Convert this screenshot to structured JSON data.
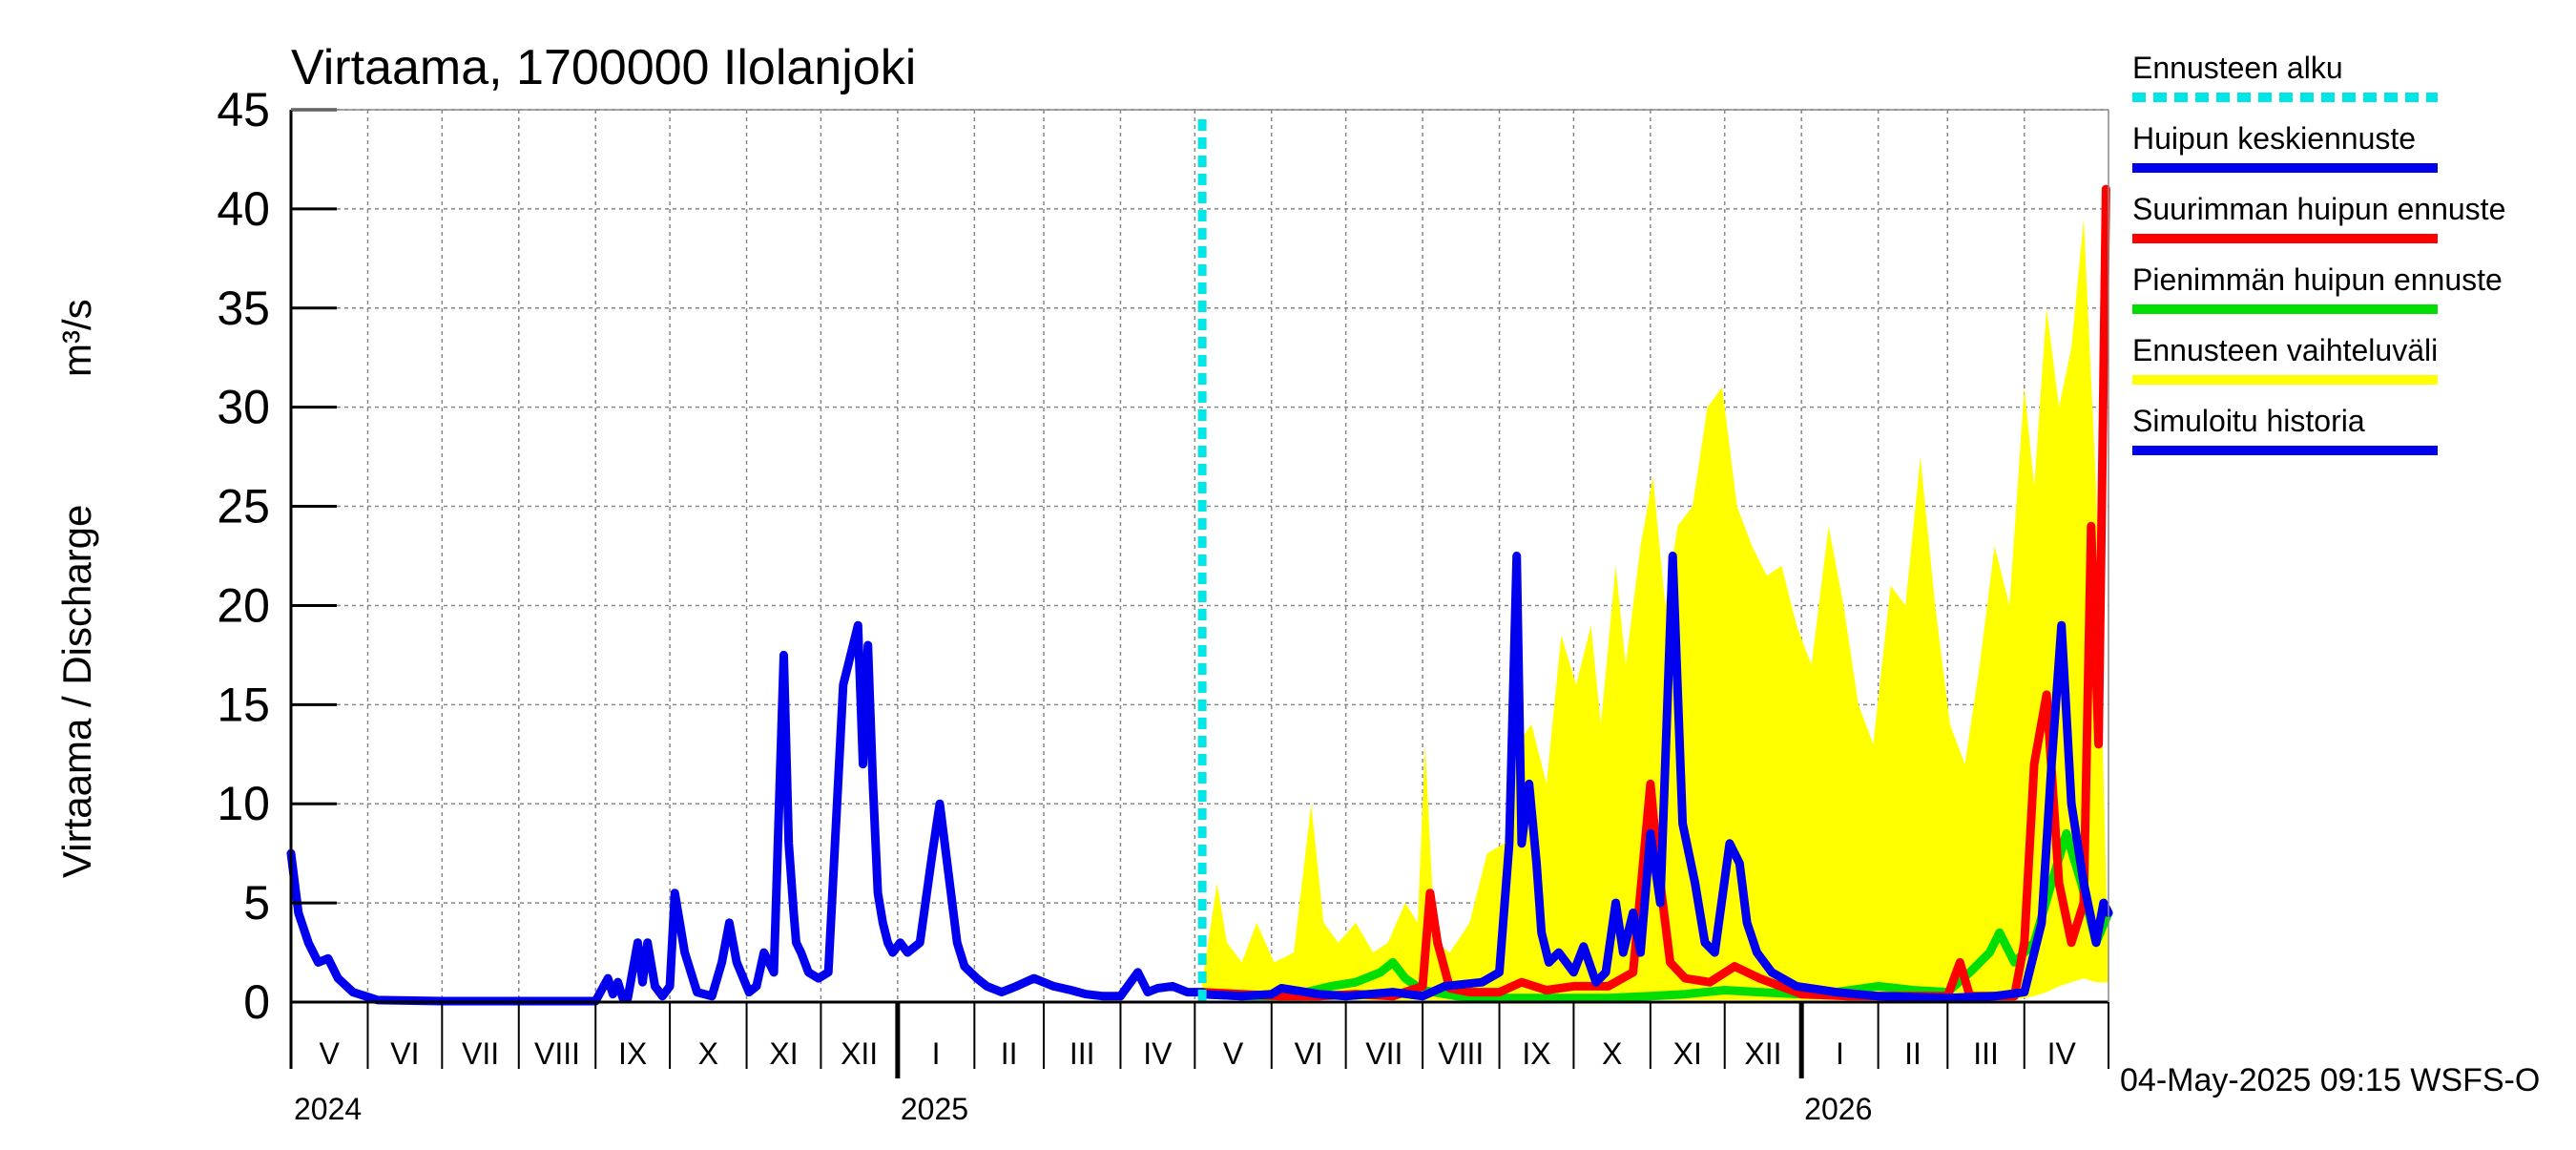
{
  "chart_data": {
    "type": "line",
    "title": "Virtaama, 1700000 Ilolanjoki",
    "ylabel": "Virtaama / Discharge",
    "yunit": "m³/s",
    "ylim": [
      0,
      45
    ],
    "yticks": [
      0,
      5,
      10,
      15,
      20,
      25,
      30,
      35,
      40,
      45
    ],
    "ytick_labels": [
      "0",
      "5",
      "10",
      "15",
      "20",
      "25",
      "30",
      "35",
      "40",
      "45"
    ],
    "xlim": [
      "2024-05-01",
      "2026-05-05"
    ],
    "grid": true,
    "legend_position": "right",
    "forecast_start": "2025-05-04",
    "month_labels": [
      {
        "label": "V",
        "start": "2024-05-01",
        "end": "2024-06-01"
      },
      {
        "label": "VI",
        "start": "2024-06-01",
        "end": "2024-07-01"
      },
      {
        "label": "VII",
        "start": "2024-07-01",
        "end": "2024-08-01"
      },
      {
        "label": "VIII",
        "start": "2024-08-01",
        "end": "2024-09-01"
      },
      {
        "label": "IX",
        "start": "2024-09-01",
        "end": "2024-10-01"
      },
      {
        "label": "X",
        "start": "2024-10-01",
        "end": "2024-11-01"
      },
      {
        "label": "XI",
        "start": "2024-11-01",
        "end": "2024-12-01"
      },
      {
        "label": "XII",
        "start": "2024-12-01",
        "end": "2025-01-01"
      },
      {
        "label": "I",
        "start": "2025-01-01",
        "end": "2025-02-01"
      },
      {
        "label": "II",
        "start": "2025-02-01",
        "end": "2025-03-01"
      },
      {
        "label": "III",
        "start": "2025-03-01",
        "end": "2025-04-01"
      },
      {
        "label": "IV",
        "start": "2025-04-01",
        "end": "2025-05-01"
      },
      {
        "label": "V",
        "start": "2025-05-01",
        "end": "2025-06-01"
      },
      {
        "label": "VI",
        "start": "2025-06-01",
        "end": "2025-07-01"
      },
      {
        "label": "VII",
        "start": "2025-07-01",
        "end": "2025-08-01"
      },
      {
        "label": "VIII",
        "start": "2025-08-01",
        "end": "2025-09-01"
      },
      {
        "label": "IX",
        "start": "2025-09-01",
        "end": "2025-10-01"
      },
      {
        "label": "X",
        "start": "2025-10-01",
        "end": "2025-11-01"
      },
      {
        "label": "XI",
        "start": "2025-11-01",
        "end": "2025-12-01"
      },
      {
        "label": "XII",
        "start": "2025-12-01",
        "end": "2026-01-01"
      },
      {
        "label": "I",
        "start": "2026-01-01",
        "end": "2026-02-01"
      },
      {
        "label": "II",
        "start": "2026-02-01",
        "end": "2026-03-01"
      },
      {
        "label": "III",
        "start": "2026-03-01",
        "end": "2026-04-01"
      },
      {
        "label": "IV",
        "start": "2026-04-01",
        "end": "2026-05-01"
      }
    ],
    "year_labels": [
      {
        "label": "2024",
        "date": "2024-05-01"
      },
      {
        "label": "2025",
        "date": "2025-01-01"
      },
      {
        "label": "2026",
        "date": "2026-01-01"
      }
    ],
    "legend": [
      {
        "label": "Ennusteen alku",
        "color": "#00e5e5",
        "style": "dashed"
      },
      {
        "label": "Huipun keskiennuste",
        "color": "#0000ee",
        "style": "solid"
      },
      {
        "label": "Suurimman huipun ennuste",
        "color": "#ff0000",
        "style": "solid"
      },
      {
        "label": "Pienimmän huipun ennuste",
        "color": "#00dd00",
        "style": "solid"
      },
      {
        "label": "Ennusteen vaihteluväli",
        "color": "#ffff00",
        "style": "solid"
      },
      {
        "label": "Simuloitu historia",
        "color": "#0000ee",
        "style": "solid"
      }
    ],
    "series": [
      {
        "name": "Ennusteen vaihteluväli",
        "kind": "band",
        "color": "#ffff00",
        "x": [
          "2025-05-04",
          "2025-05-10",
          "2025-05-14",
          "2025-05-20",
          "2025-05-26",
          "2025-06-02",
          "2025-06-10",
          "2025-06-17",
          "2025-06-22",
          "2025-06-28",
          "2025-07-05",
          "2025-07-12",
          "2025-07-18",
          "2025-07-25",
          "2025-07-30",
          "2025-08-02",
          "2025-08-06",
          "2025-08-12",
          "2025-08-20",
          "2025-08-27",
          "2025-09-03",
          "2025-09-08",
          "2025-09-14",
          "2025-09-20",
          "2025-09-26",
          "2025-10-02",
          "2025-10-08",
          "2025-10-12",
          "2025-10-18",
          "2025-10-22",
          "2025-10-28",
          "2025-11-02",
          "2025-11-07",
          "2025-11-12",
          "2025-11-18",
          "2025-11-24",
          "2025-11-30",
          "2025-12-06",
          "2025-12-12",
          "2025-12-18",
          "2025-12-24",
          "2025-12-30",
          "2026-01-05",
          "2026-01-12",
          "2026-01-18",
          "2026-01-24",
          "2026-01-30",
          "2026-02-06",
          "2026-02-12",
          "2026-02-18",
          "2026-02-24",
          "2026-03-02",
          "2026-03-08",
          "2026-03-14",
          "2026-03-20",
          "2026-03-26",
          "2026-04-01",
          "2026-04-05",
          "2026-04-10",
          "2026-04-15",
          "2026-04-20",
          "2026-04-25",
          "2026-04-30",
          "2026-05-05"
        ],
        "upper": [
          1.0,
          6.0,
          3.0,
          2.0,
          4.0,
          2.0,
          2.5,
          10.0,
          4.0,
          3.0,
          4.0,
          2.5,
          3.0,
          5.0,
          4.0,
          13.0,
          3.0,
          2.5,
          4.0,
          7.5,
          8.0,
          13.0,
          14.0,
          11.0,
          18.5,
          16.0,
          19.0,
          14.0,
          22.0,
          17.0,
          23.0,
          26.5,
          20.0,
          24.0,
          25.0,
          30.0,
          31.0,
          25.0,
          23.0,
          21.5,
          22.0,
          19.0,
          17.0,
          24.0,
          20.0,
          15.0,
          13.0,
          21.0,
          20.0,
          27.5,
          20.0,
          14.0,
          12.0,
          17.0,
          23.0,
          20.0,
          31.0,
          26.0,
          35.0,
          30.0,
          33.0,
          39.5,
          26.0,
          1.5
        ],
        "lower": [
          0.2,
          0.2,
          0.2,
          0.2,
          0.1,
          0.1,
          0.1,
          0.1,
          0.1,
          0.1,
          0.1,
          0.1,
          0.1,
          0.1,
          0.1,
          0.1,
          0.1,
          0.1,
          0.1,
          0.1,
          0.1,
          0.1,
          0.1,
          0.1,
          0.1,
          0.1,
          0.1,
          0.1,
          0.1,
          0.1,
          0.1,
          0.1,
          0.1,
          0.1,
          0.1,
          0.1,
          0.1,
          0.1,
          0.1,
          0.1,
          0.1,
          0.1,
          0.1,
          0.1,
          0.1,
          0.1,
          0.1,
          0.1,
          0.1,
          0.1,
          0.1,
          0.1,
          0.1,
          0.1,
          0.1,
          0.1,
          0.2,
          0.3,
          0.5,
          0.8,
          1.0,
          1.2,
          1.0,
          1.0
        ]
      },
      {
        "name": "Pienimmän huipun ennuste",
        "color": "#00dd00",
        "x": [
          "2025-05-04",
          "2025-05-20",
          "2025-06-05",
          "2025-06-15",
          "2025-06-25",
          "2025-07-05",
          "2025-07-15",
          "2025-07-20",
          "2025-07-25",
          "2025-08-01",
          "2025-08-15",
          "2025-09-01",
          "2025-09-15",
          "2025-10-01",
          "2025-10-15",
          "2025-11-01",
          "2025-11-15",
          "2025-12-01",
          "2025-12-15",
          "2026-01-01",
          "2026-01-15",
          "2026-02-01",
          "2026-02-15",
          "2026-03-01",
          "2026-03-10",
          "2026-03-18",
          "2026-03-22",
          "2026-03-28",
          "2026-04-05",
          "2026-04-12",
          "2026-04-18",
          "2026-04-24",
          "2026-04-30",
          "2026-05-05"
        ],
        "y": [
          0.4,
          0.3,
          0.3,
          0.5,
          0.8,
          1.0,
          1.5,
          2.0,
          1.2,
          0.6,
          0.3,
          0.2,
          0.2,
          0.2,
          0.2,
          0.3,
          0.4,
          0.6,
          0.5,
          0.4,
          0.5,
          0.8,
          0.6,
          0.5,
          1.5,
          2.5,
          3.5,
          2.0,
          3.0,
          6.0,
          8.5,
          6.0,
          3.0,
          4.5
        ]
      },
      {
        "name": "Suurimman huipun ennuste",
        "color": "#ff0000",
        "x": [
          "2025-05-04",
          "2025-05-20",
          "2025-06-05",
          "2025-06-20",
          "2025-07-05",
          "2025-07-20",
          "2025-08-01",
          "2025-08-04",
          "2025-08-07",
          "2025-08-12",
          "2025-08-20",
          "2025-09-01",
          "2025-09-10",
          "2025-09-20",
          "2025-10-01",
          "2025-10-15",
          "2025-10-25",
          "2025-11-01",
          "2025-11-04",
          "2025-11-09",
          "2025-11-15",
          "2025-11-25",
          "2025-12-05",
          "2025-12-15",
          "2026-01-01",
          "2026-01-20",
          "2026-02-10",
          "2026-03-01",
          "2026-03-06",
          "2026-03-10",
          "2026-03-20",
          "2026-03-28",
          "2026-04-01",
          "2026-04-05",
          "2026-04-10",
          "2026-04-15",
          "2026-04-20",
          "2026-04-25",
          "2026-04-28",
          "2026-05-01",
          "2026-05-04"
        ],
        "y": [
          0.5,
          0.4,
          0.3,
          0.3,
          0.4,
          0.3,
          0.8,
          5.5,
          3.0,
          0.7,
          0.5,
          0.5,
          1.0,
          0.6,
          0.8,
          0.8,
          1.5,
          11.0,
          7.0,
          2.0,
          1.2,
          1.0,
          1.8,
          1.2,
          0.4,
          0.3,
          0.3,
          0.3,
          2.0,
          0.3,
          0.3,
          0.3,
          3.0,
          12.0,
          15.5,
          6.0,
          3.0,
          5.0,
          24.0,
          13.0,
          41.0
        ]
      },
      {
        "name": "Huipun keskiennuste",
        "color": "#0000ee",
        "x": [
          "2025-05-04",
          "2025-05-20",
          "2025-06-01",
          "2025-06-05",
          "2025-06-20",
          "2025-07-01",
          "2025-07-20",
          "2025-08-01",
          "2025-08-10",
          "2025-08-25",
          "2025-09-01",
          "2025-09-05",
          "2025-09-08",
          "2025-09-10",
          "2025-09-13",
          "2025-09-16",
          "2025-09-18",
          "2025-09-21",
          "2025-09-25",
          "2025-10-01",
          "2025-10-05",
          "2025-10-10",
          "2025-10-14",
          "2025-10-18",
          "2025-10-21",
          "2025-10-25",
          "2025-10-28",
          "2025-11-01",
          "2025-11-05",
          "2025-11-10",
          "2025-11-14",
          "2025-11-19",
          "2025-11-23",
          "2025-11-27",
          "2025-12-03",
          "2025-12-07",
          "2025-12-10",
          "2025-12-14",
          "2025-12-20",
          "2025-12-30",
          "2026-01-15",
          "2026-02-01",
          "2026-03-01",
          "2026-03-20",
          "2026-04-01",
          "2026-04-08",
          "2026-04-12",
          "2026-04-16",
          "2026-04-20",
          "2026-04-25",
          "2026-04-30",
          "2026-05-03",
          "2026-05-05"
        ],
        "y": [
          0.4,
          0.3,
          0.4,
          0.7,
          0.4,
          0.3,
          0.5,
          0.3,
          0.8,
          1.0,
          1.5,
          8.0,
          22.5,
          8.0,
          11.0,
          7.0,
          3.5,
          2.0,
          2.5,
          1.5,
          2.8,
          1.0,
          1.5,
          5.0,
          2.5,
          4.5,
          2.5,
          8.5,
          5.0,
          22.5,
          9.0,
          6.0,
          3.0,
          2.5,
          8.0,
          7.0,
          4.0,
          2.5,
          1.5,
          0.8,
          0.5,
          0.3,
          0.2,
          0.3,
          0.5,
          4.0,
          12.0,
          19.0,
          10.0,
          6.0,
          3.0,
          5.0,
          4.5
        ]
      },
      {
        "name": "Simuloitu historia",
        "color": "#0000ee",
        "x": [
          "2024-05-01",
          "2024-05-04",
          "2024-05-08",
          "2024-05-12",
          "2024-05-16",
          "2024-05-20",
          "2024-05-26",
          "2024-06-05",
          "2024-07-01",
          "2024-08-01",
          "2024-09-01",
          "2024-09-06",
          "2024-09-08",
          "2024-09-10",
          "2024-09-12",
          "2024-09-14",
          "2024-09-18",
          "2024-09-20",
          "2024-09-22",
          "2024-09-25",
          "2024-09-28",
          "2024-10-01",
          "2024-10-03",
          "2024-10-07",
          "2024-10-12",
          "2024-10-18",
          "2024-10-22",
          "2024-10-25",
          "2024-10-28",
          "2024-11-02",
          "2024-11-05",
          "2024-11-08",
          "2024-11-12",
          "2024-11-16",
          "2024-11-18",
          "2024-11-20",
          "2024-11-21",
          "2024-11-23",
          "2024-11-26",
          "2024-11-30",
          "2024-12-04",
          "2024-12-10",
          "2024-12-16",
          "2024-12-18",
          "2024-12-20",
          "2024-12-22",
          "2024-12-24",
          "2024-12-26",
          "2024-12-28",
          "2024-12-30",
          "2025-01-02",
          "2025-01-05",
          "2025-01-10",
          "2025-01-15",
          "2025-01-18",
          "2025-01-22",
          "2025-01-25",
          "2025-01-28",
          "2025-02-02",
          "2025-02-06",
          "2025-02-12",
          "2025-02-18",
          "2025-02-25",
          "2025-03-05",
          "2025-03-12",
          "2025-03-18",
          "2025-03-25",
          "2025-04-01",
          "2025-04-08",
          "2025-04-12",
          "2025-04-16",
          "2025-04-22",
          "2025-04-28",
          "2025-05-04"
        ],
        "y": [
          7.5,
          4.5,
          3.0,
          2.0,
          2.2,
          1.2,
          0.5,
          0.1,
          0.05,
          0.05,
          0.05,
          1.2,
          0.4,
          1.0,
          0.2,
          0.2,
          3.0,
          1.0,
          3.0,
          0.8,
          0.3,
          0.8,
          5.5,
          2.5,
          0.5,
          0.3,
          2.0,
          4.0,
          2.0,
          0.5,
          0.8,
          2.5,
          1.5,
          17.5,
          8.0,
          4.5,
          3.0,
          2.5,
          1.5,
          1.2,
          1.5,
          16.0,
          19.0,
          12.0,
          18.0,
          11.0,
          5.5,
          4.0,
          3.0,
          2.5,
          3.0,
          2.5,
          3.0,
          7.5,
          10.0,
          6.0,
          3.0,
          1.8,
          1.2,
          0.8,
          0.5,
          0.8,
          1.2,
          0.8,
          0.6,
          0.4,
          0.3,
          0.3,
          1.5,
          0.5,
          0.7,
          0.8,
          0.5,
          0.5
        ]
      }
    ],
    "footer": "04-May-2025 09:15 WSFS-O"
  }
}
